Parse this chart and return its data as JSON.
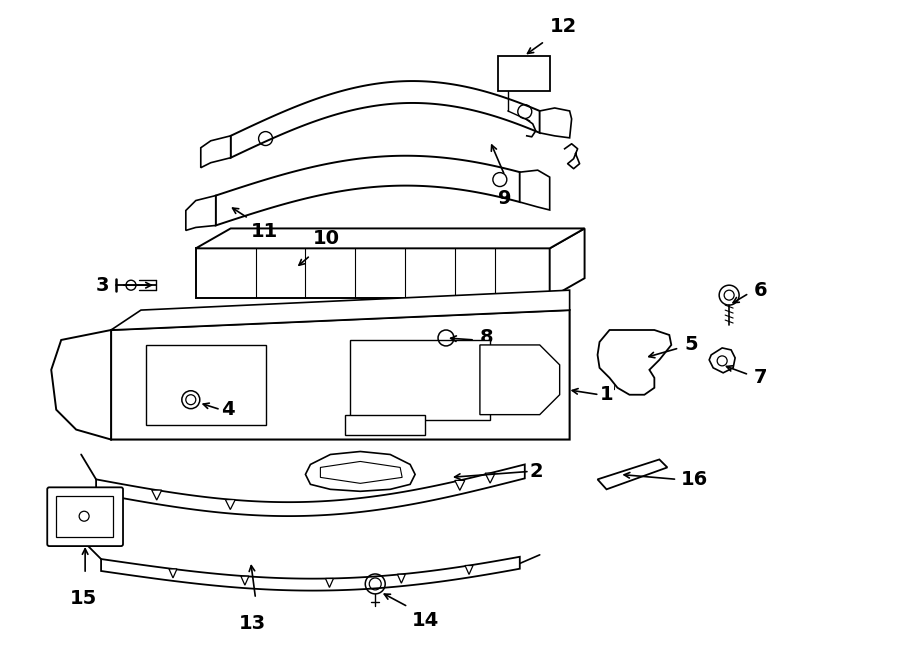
{
  "bg_color": "#ffffff",
  "line_color": "#000000",
  "figsize": [
    9.0,
    6.61
  ],
  "dpi": 100,
  "label_fontsize": 14
}
